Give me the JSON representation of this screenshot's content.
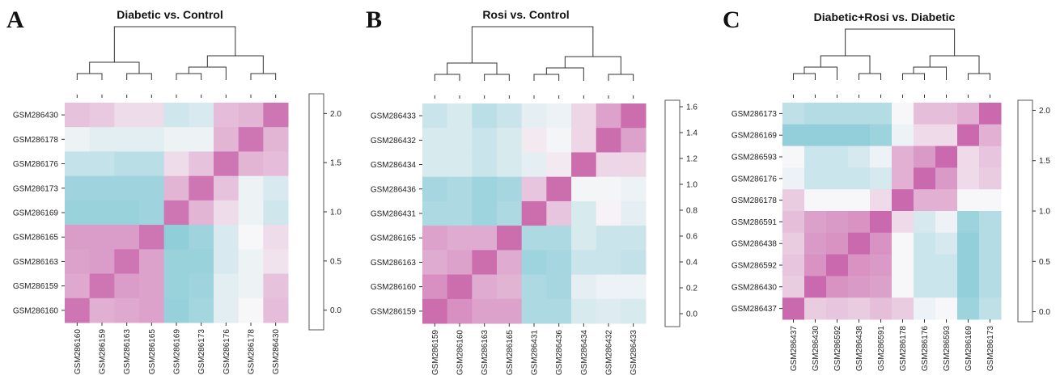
{
  "chart_data": [
    {
      "type": "heatmap",
      "panel_letter": "A",
      "title": "Diabetic vs. Control",
      "rows": [
        "GSM286430",
        "GSM286178",
        "GSM286176",
        "GSM286173",
        "GSM286169",
        "GSM286165",
        "GSM286163",
        "GSM286159",
        "GSM286160"
      ],
      "columns": [
        "GSM286160",
        "GSM286159",
        "GSM286163",
        "GSM286165",
        "GSM286169",
        "GSM286173",
        "GSM286176",
        "GSM286178",
        "GSM286430"
      ],
      "values": [
        [
          0.6,
          0.65,
          0.8,
          0.8,
          1.4,
          1.3,
          0.55,
          0.5,
          0.0
        ],
        [
          1.1,
          1.2,
          1.2,
          1.2,
          1.1,
          1.1,
          0.5,
          0.0,
          0.5
        ],
        [
          1.5,
          1.5,
          1.6,
          1.6,
          0.8,
          0.6,
          0.0,
          0.5,
          0.55
        ],
        [
          1.85,
          1.85,
          1.85,
          1.85,
          0.5,
          0.0,
          0.6,
          1.1,
          1.3
        ],
        [
          1.9,
          1.9,
          1.9,
          1.85,
          0.0,
          0.5,
          0.8,
          1.1,
          1.4
        ],
        [
          0.3,
          0.3,
          0.3,
          0.0,
          2.0,
          1.85,
          1.3,
          1.0,
          0.8
        ],
        [
          0.35,
          0.3,
          0.0,
          0.35,
          1.9,
          1.9,
          1.3,
          1.1,
          0.85
        ],
        [
          0.4,
          0.0,
          0.3,
          0.35,
          1.9,
          1.85,
          1.2,
          1.1,
          0.6
        ],
        [
          0.0,
          0.45,
          0.4,
          0.35,
          1.95,
          1.8,
          1.2,
          1.0,
          0.55
        ]
      ],
      "colorbar": {
        "ticks": [
          0.0,
          0.5,
          1.0,
          1.5,
          2.0
        ],
        "labels": [
          "0.0",
          "0.5",
          "1.0",
          "1.5",
          "2.0"
        ],
        "min": -0.2,
        "max": 2.2
      },
      "colors": {
        "low": "#c65ba5",
        "mid": "#f7f6f8",
        "high": "#7bc6d3"
      }
    },
    {
      "type": "heatmap",
      "panel_letter": "B",
      "title": "Rosi vs. Control",
      "rows": [
        "GSM286433",
        "GSM286432",
        "GSM286434",
        "GSM286436",
        "GSM286431",
        "GSM286165",
        "GSM286163",
        "GSM286160",
        "GSM286159"
      ],
      "columns": [
        "GSM286159",
        "GSM286160",
        "GSM286163",
        "GSM286165",
        "GSM286431",
        "GSM286436",
        "GSM286434",
        "GSM286432",
        "GSM286433"
      ],
      "values": [
        [
          1.1,
          1.0,
          1.2,
          1.1,
          0.9,
          0.85,
          0.6,
          0.3,
          0.0
        ],
        [
          1.0,
          1.0,
          1.1,
          1.0,
          0.7,
          0.8,
          0.6,
          0.0,
          0.3
        ],
        [
          1.0,
          1.0,
          1.1,
          1.0,
          0.9,
          0.7,
          0.0,
          0.6,
          0.6
        ],
        [
          1.35,
          1.3,
          1.4,
          1.35,
          0.5,
          0.0,
          0.8,
          0.8,
          0.85
        ],
        [
          1.3,
          1.3,
          1.4,
          1.3,
          0.0,
          0.5,
          1.0,
          0.75,
          0.9
        ],
        [
          0.3,
          0.35,
          0.35,
          0.0,
          1.3,
          1.3,
          1.0,
          1.1,
          1.1
        ],
        [
          0.35,
          0.3,
          0.0,
          0.35,
          1.4,
          1.35,
          1.1,
          1.1,
          1.15
        ],
        [
          0.2,
          0.0,
          0.35,
          0.4,
          1.3,
          1.35,
          0.9,
          0.85,
          0.85
        ],
        [
          0.0,
          0.2,
          0.3,
          0.3,
          1.3,
          1.3,
          1.0,
          0.95,
          1.0
        ]
      ],
      "colorbar": {
        "ticks": [
          0.0,
          0.2,
          0.4,
          0.6,
          0.8,
          1.0,
          1.2,
          1.4,
          1.6
        ],
        "labels": [
          "0.0",
          "0.2",
          "0.4",
          "0.6",
          "0.8",
          "1.0",
          "1.2",
          "1.4",
          "1.6"
        ],
        "min": -0.1,
        "max": 1.65
      },
      "colors": {
        "low": "#c65ba5",
        "mid": "#f7f6f8",
        "high": "#7bc6d3"
      }
    },
    {
      "type": "heatmap",
      "panel_letter": "C",
      "title": "Diabetic+Rosi vs. Diabetic",
      "rows": [
        "GSM286173",
        "GSM286169",
        "GSM286593",
        "GSM286176",
        "GSM286178",
        "GSM286591",
        "GSM286438",
        "GSM286592",
        "GSM286430",
        "GSM286437"
      ],
      "columns": [
        "GSM286437",
        "GSM286430",
        "GSM286592",
        "GSM286438",
        "GSM286591",
        "GSM286178",
        "GSM286176",
        "GSM286593",
        "GSM286169",
        "GSM286173"
      ],
      "values": [
        [
          1.5,
          1.6,
          1.6,
          1.6,
          1.6,
          1.0,
          0.6,
          0.6,
          0.5,
          0.0
        ],
        [
          1.9,
          1.9,
          1.9,
          1.9,
          1.8,
          1.1,
          0.8,
          0.8,
          0.0,
          0.5
        ],
        [
          1.0,
          1.4,
          1.4,
          1.3,
          1.1,
          0.5,
          0.35,
          0.0,
          0.8,
          0.65
        ],
        [
          1.1,
          1.4,
          1.4,
          1.4,
          1.3,
          0.5,
          0.0,
          0.35,
          0.8,
          0.7
        ],
        [
          0.7,
          1.0,
          1.0,
          1.0,
          0.8,
          0.0,
          0.5,
          0.5,
          1.0,
          1.0
        ],
        [
          0.6,
          0.4,
          0.35,
          0.3,
          0.0,
          0.8,
          1.3,
          1.1,
          1.8,
          1.6
        ],
        [
          0.7,
          0.35,
          0.3,
          0.0,
          0.3,
          1.0,
          1.4,
          1.3,
          1.9,
          1.6
        ],
        [
          0.65,
          0.3,
          0.0,
          0.3,
          0.35,
          1.0,
          1.4,
          1.4,
          1.9,
          1.6
        ],
        [
          0.7,
          0.0,
          0.3,
          0.35,
          0.4,
          1.0,
          1.4,
          1.4,
          1.9,
          1.6
        ],
        [
          0.0,
          0.7,
          0.65,
          0.7,
          0.6,
          0.7,
          1.1,
          1.0,
          1.8,
          1.5
        ]
      ],
      "colorbar": {
        "ticks": [
          0.0,
          0.5,
          1.0,
          1.5,
          2.0
        ],
        "labels": [
          "0.0",
          "0.5",
          "1.0",
          "1.5",
          "2.0"
        ],
        "min": -0.1,
        "max": 2.1
      },
      "colors": {
        "low": "#c65ba5",
        "mid": "#f7f6f8",
        "high": "#7bc6d3"
      }
    }
  ]
}
